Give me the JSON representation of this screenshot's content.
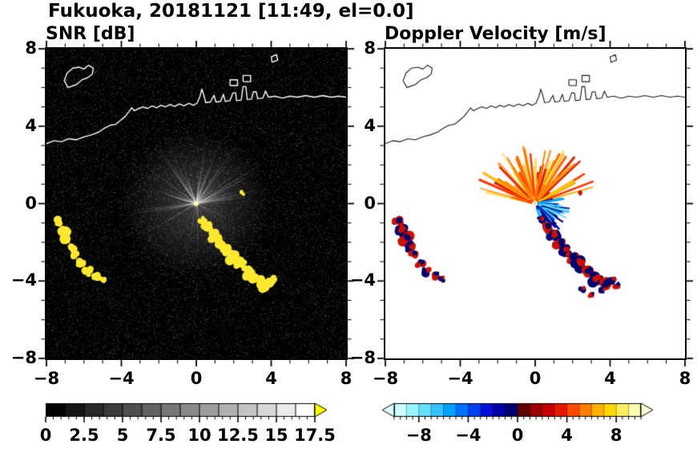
{
  "title": "Fukuoka, 20181121 [11:49, el=0.0]",
  "chart_data": [
    {
      "type": "heatmap",
      "id": "snr",
      "title": "SNR [dB]",
      "xlim": [
        -8,
        8
      ],
      "ylim": [
        -8,
        8
      ],
      "tick_values": [
        -8,
        -4,
        0,
        4,
        8
      ],
      "tick_labels": [
        "−8",
        "−4",
        "0",
        "4",
        "8"
      ],
      "minor_tick_step": 1,
      "background": "#000000",
      "coastline_color": "#ffffff",
      "radar_center": [
        0,
        0
      ],
      "center_dot_color": "#ffffaa",
      "echo_color": "#ffe930",
      "noise": {
        "count": 15000,
        "min_gray": 18,
        "max_gray": 90
      },
      "spokes": {
        "count": 120,
        "primary_arc_deg": [
          -85,
          85
        ],
        "primary_fraction": 0.72,
        "max_len_units": 4.0,
        "color": "#d2d2d2"
      },
      "colorbar": {
        "range": [
          0,
          17.5
        ],
        "segments": 14,
        "colormap": "grayscale",
        "start_color": "#000000",
        "end_color": "#ffffff",
        "over_arrow_color": "#ffff00",
        "tick_values": [
          0,
          2.5,
          5,
          7.5,
          10,
          12.5,
          15,
          17.5
        ],
        "tick_labels": [
          "0",
          "2.5",
          "5",
          "7.5",
          "10",
          "12.5",
          "15",
          "17.5"
        ],
        "minor_tick_step": 0.5
      }
    },
    {
      "type": "heatmap",
      "id": "velocity",
      "title": "Doppler Velocity [m/s]",
      "xlim": [
        -8,
        8
      ],
      "ylim": [
        -8,
        8
      ],
      "tick_values": [
        -8,
        -4,
        0,
        4,
        8
      ],
      "tick_labels": [
        "−8",
        "−4",
        "0",
        "4",
        "8"
      ],
      "minor_tick_step": 1,
      "background": "#ffffff",
      "coastline_color": "#1a1a1a",
      "radar_center": [
        0,
        0
      ],
      "center_dot_color": "#ffcc00",
      "echo_colors": [
        "#cc1100",
        "#000070"
      ],
      "fans": [
        {
          "name": "outbound-warm",
          "angle_start_deg": 15,
          "angle_end_deg": 168,
          "count": 90,
          "len_min_units": 0.6,
          "len_max_units": 3.3,
          "width_min": 1.6,
          "width_max": 3.4,
          "colors": [
            "#ff8800",
            "#ffaa00",
            "#ff6600",
            "#ffcc00",
            "#ff3300",
            "#dd2200",
            "#ffdd55",
            "#ff9933"
          ]
        },
        {
          "name": "inbound-cool",
          "angle_start_deg": -72,
          "angle_end_deg": 14,
          "count": 60,
          "len_min_units": 0.35,
          "len_max_units": 1.9,
          "width_min": 1.6,
          "width_max": 3.0,
          "colors": [
            "#00aaff",
            "#0077ff",
            "#0033dd",
            "#0000aa",
            "#33ccff",
            "#000077",
            "#55ddff"
          ]
        }
      ],
      "extra_echoes": [
        [
          2.5,
          -4.45,
          0.14
        ],
        [
          3.0,
          -4.75,
          0.12
        ],
        [
          3.6,
          -4.5,
          0.13
        ],
        [
          4.35,
          -4.25,
          0.15
        ]
      ],
      "colorbar": {
        "range": [
          -10,
          10
        ],
        "segments": 20,
        "colors": [
          "#ccffff",
          "#99f5ff",
          "#66e0ff",
          "#33c4ff",
          "#00a0ff",
          "#0070ff",
          "#0040f0",
          "#0010d8",
          "#0000a8",
          "#000070",
          "#600000",
          "#9c0000",
          "#c80000",
          "#e81800",
          "#ff4800",
          "#ff7c00",
          "#ffb000",
          "#ffd800",
          "#ffee60",
          "#ffffb0"
        ],
        "under_arrow_color": "#e0ffff",
        "over_arrow_color": "#ffffd8",
        "tick_values": [
          -8,
          -4,
          0,
          4,
          8
        ],
        "tick_labels": [
          "−8",
          "−4",
          "0",
          "4",
          "8"
        ],
        "minor_tick_step": 0.5
      }
    }
  ],
  "shared": {
    "coastlines": [
      [
        [
          -8,
          3.1
        ],
        [
          -7.6,
          3.25
        ],
        [
          -7.2,
          3.2
        ],
        [
          -6.8,
          3.35
        ],
        [
          -6.4,
          3.3
        ],
        [
          -6.0,
          3.45
        ],
        [
          -5.6,
          3.55
        ],
        [
          -5.2,
          3.7
        ],
        [
          -4.9,
          3.9
        ],
        [
          -4.6,
          4.05
        ],
        [
          -4.3,
          4.1
        ],
        [
          -4.05,
          4.3
        ],
        [
          -3.8,
          4.5
        ],
        [
          -3.6,
          4.75
        ],
        [
          -3.45,
          4.95
        ],
        [
          -3.3,
          4.8
        ],
        [
          -3.1,
          4.9
        ],
        [
          -2.85,
          5.0
        ],
        [
          -2.6,
          4.92
        ],
        [
          -2.35,
          5.05
        ],
        [
          -2.1,
          4.95
        ],
        [
          -1.9,
          5.08
        ],
        [
          -1.65,
          5.0
        ],
        [
          -1.4,
          5.12
        ],
        [
          -1.15,
          5.02
        ],
        [
          -0.9,
          5.15
        ],
        [
          -0.65,
          5.05
        ],
        [
          -0.4,
          5.18
        ],
        [
          -0.15,
          5.08
        ],
        [
          0.05,
          5.2
        ],
        [
          0.2,
          5.55
        ],
        [
          0.3,
          5.92
        ],
        [
          0.42,
          5.55
        ],
        [
          0.5,
          5.22
        ],
        [
          0.75,
          5.25
        ],
        [
          0.95,
          5.6
        ],
        [
          1.05,
          5.25
        ],
        [
          1.3,
          5.28
        ],
        [
          1.45,
          5.65
        ],
        [
          1.55,
          5.28
        ],
        [
          1.8,
          5.32
        ],
        [
          1.95,
          5.72
        ],
        [
          2.1,
          5.72
        ],
        [
          2.15,
          5.32
        ],
        [
          2.4,
          5.35
        ],
        [
          2.5,
          6.05
        ],
        [
          2.65,
          6.05
        ],
        [
          2.72,
          5.38
        ],
        [
          2.95,
          5.4
        ],
        [
          3.05,
          5.78
        ],
        [
          3.2,
          5.78
        ],
        [
          3.28,
          5.42
        ],
        [
          3.55,
          5.45
        ],
        [
          3.7,
          5.82
        ],
        [
          3.85,
          5.5
        ],
        [
          4.2,
          5.55
        ],
        [
          4.6,
          5.45
        ],
        [
          5.0,
          5.55
        ],
        [
          5.4,
          5.5
        ],
        [
          5.85,
          5.58
        ],
        [
          6.3,
          5.5
        ],
        [
          6.75,
          5.58
        ],
        [
          7.2,
          5.5
        ],
        [
          7.6,
          5.55
        ],
        [
          8,
          5.5
        ]
      ],
      [
        [
          -6.85,
          6.0
        ],
        [
          -7.05,
          6.35
        ],
        [
          -6.9,
          6.75
        ],
        [
          -6.6,
          7.0
        ],
        [
          -6.25,
          7.05
        ],
        [
          -6.0,
          6.95
        ],
        [
          -5.75,
          7.15
        ],
        [
          -5.5,
          7.0
        ],
        [
          -5.55,
          6.7
        ],
        [
          -5.8,
          6.5
        ],
        [
          -6.1,
          6.4
        ],
        [
          -6.4,
          6.15
        ],
        [
          -6.85,
          6.0
        ]
      ],
      [
        [
          1.8,
          6.1
        ],
        [
          2.2,
          6.1
        ],
        [
          2.2,
          6.4
        ],
        [
          1.8,
          6.4
        ],
        [
          1.8,
          6.1
        ]
      ],
      [
        [
          2.5,
          6.3
        ],
        [
          2.9,
          6.3
        ],
        [
          2.9,
          6.62
        ],
        [
          2.5,
          6.62
        ],
        [
          2.5,
          6.3
        ]
      ],
      [
        [
          4.05,
          7.3
        ],
        [
          4.35,
          7.42
        ],
        [
          4.28,
          7.7
        ],
        [
          4.0,
          7.58
        ],
        [
          4.05,
          7.3
        ]
      ]
    ],
    "echoes": {
      "chain": [
        [
          0.3,
          -0.85,
          0.18
        ],
        [
          0.6,
          -1.25,
          0.24
        ],
        [
          0.95,
          -1.65,
          0.26
        ],
        [
          1.3,
          -2.05,
          0.26
        ],
        [
          1.6,
          -2.45,
          0.24
        ],
        [
          1.95,
          -2.8,
          0.28
        ],
        [
          2.35,
          -3.15,
          0.3
        ],
        [
          2.8,
          -3.55,
          0.3
        ],
        [
          3.25,
          -3.95,
          0.32
        ],
        [
          3.7,
          -4.2,
          0.28
        ],
        [
          4.1,
          -3.95,
          0.18
        ]
      ],
      "left_arc": [
        [
          -7.35,
          -0.95,
          0.22
        ],
        [
          -7.15,
          -1.4,
          0.28
        ],
        [
          -6.9,
          -1.85,
          0.28
        ],
        [
          -6.65,
          -2.3,
          0.24
        ],
        [
          -6.5,
          -2.65,
          0.18
        ]
      ],
      "left_cluster": [
        [
          -6.15,
          -3.1,
          0.2
        ],
        [
          -5.8,
          -3.5,
          0.24
        ],
        [
          -5.35,
          -3.75,
          0.18
        ],
        [
          -5.0,
          -3.9,
          0.13
        ]
      ],
      "specks": [
        [
          2.45,
          0.55,
          0.1
        ]
      ]
    }
  }
}
